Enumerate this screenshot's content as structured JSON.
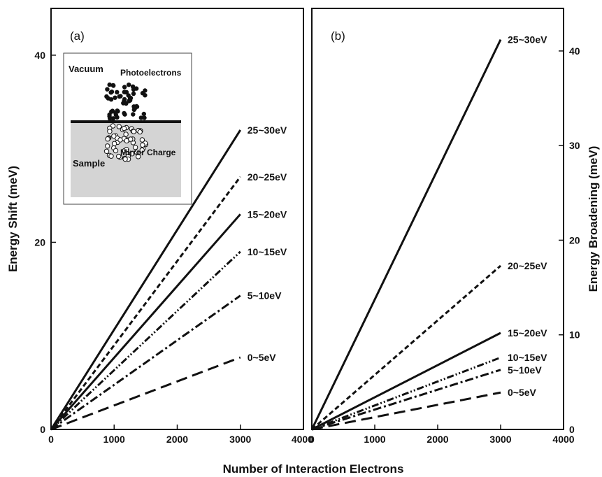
{
  "figure": {
    "xlabel": "Number of Interaction Electrons"
  },
  "chart_data": [
    {
      "type": "line",
      "panel_label": "(a)",
      "ylabel": "Energy Shift (meV)",
      "xlim": [
        0,
        4000
      ],
      "ylim": [
        0,
        45
      ],
      "x_ticks": [
        "0",
        "1000",
        "2000",
        "3000",
        "4000"
      ],
      "y_ticks": [
        "0",
        "20",
        "40"
      ],
      "x_tick_values": [
        0,
        1000,
        2000,
        3000,
        4000
      ],
      "y_tick_values": [
        0,
        20,
        40
      ],
      "y_axis_side": "left",
      "series": [
        {
          "name": "25~30eV",
          "style": "solid",
          "x": [
            0,
            3000
          ],
          "values": [
            0,
            32
          ]
        },
        {
          "name": "20~25eV",
          "style": "short-dash",
          "x": [
            0,
            3000
          ],
          "values": [
            0,
            27
          ]
        },
        {
          "name": "15~20eV",
          "style": "solid",
          "x": [
            0,
            3000
          ],
          "values": [
            0,
            23
          ]
        },
        {
          "name": "10~15eV",
          "style": "dash-dot-dot",
          "x": [
            0,
            3000
          ],
          "values": [
            0,
            19
          ]
        },
        {
          "name": "5~10eV",
          "style": "dash-dot",
          "x": [
            0,
            3000
          ],
          "values": [
            0,
            14.3
          ]
        },
        {
          "name": "0~5eV",
          "style": "long-dash",
          "x": [
            0,
            3000
          ],
          "values": [
            0,
            7.7
          ]
        }
      ],
      "inset": {
        "vacuum_label": "Vacuum",
        "photoelectrons_label": "Photoelectrons",
        "mirror_label": "Mirror Charge",
        "sample_label": "Sample"
      }
    },
    {
      "type": "line",
      "panel_label": "(b)",
      "ylabel": "Energy Broadening (meV)",
      "xlim": [
        0,
        4000
      ],
      "ylim": [
        0,
        44.5
      ],
      "x_ticks": [
        "0",
        "1000",
        "2000",
        "3000",
        "4000"
      ],
      "y_ticks": [
        "0",
        "10",
        "20",
        "30",
        "40"
      ],
      "x_tick_values": [
        0,
        1000,
        2000,
        3000,
        4000
      ],
      "y_tick_values": [
        0,
        10,
        20,
        30,
        40
      ],
      "y_axis_side": "right",
      "series": [
        {
          "name": "25~30eV",
          "style": "solid",
          "x": [
            0,
            3000
          ],
          "values": [
            0,
            41.2
          ]
        },
        {
          "name": "20~25eV",
          "style": "short-dash",
          "x": [
            0,
            3000
          ],
          "values": [
            0,
            17.3
          ]
        },
        {
          "name": "15~20eV",
          "style": "solid",
          "x": [
            0,
            3000
          ],
          "values": [
            0,
            10.2
          ]
        },
        {
          "name": "10~15eV",
          "style": "dash-dot-dot",
          "x": [
            0,
            3000
          ],
          "values": [
            0,
            7.6
          ]
        },
        {
          "name": "5~10eV",
          "style": "dash-dot",
          "x": [
            0,
            3000
          ],
          "values": [
            0,
            6.3
          ]
        },
        {
          "name": "0~5eV",
          "style": "long-dash",
          "x": [
            0,
            3000
          ],
          "values": [
            0,
            3.9
          ]
        }
      ]
    }
  ]
}
